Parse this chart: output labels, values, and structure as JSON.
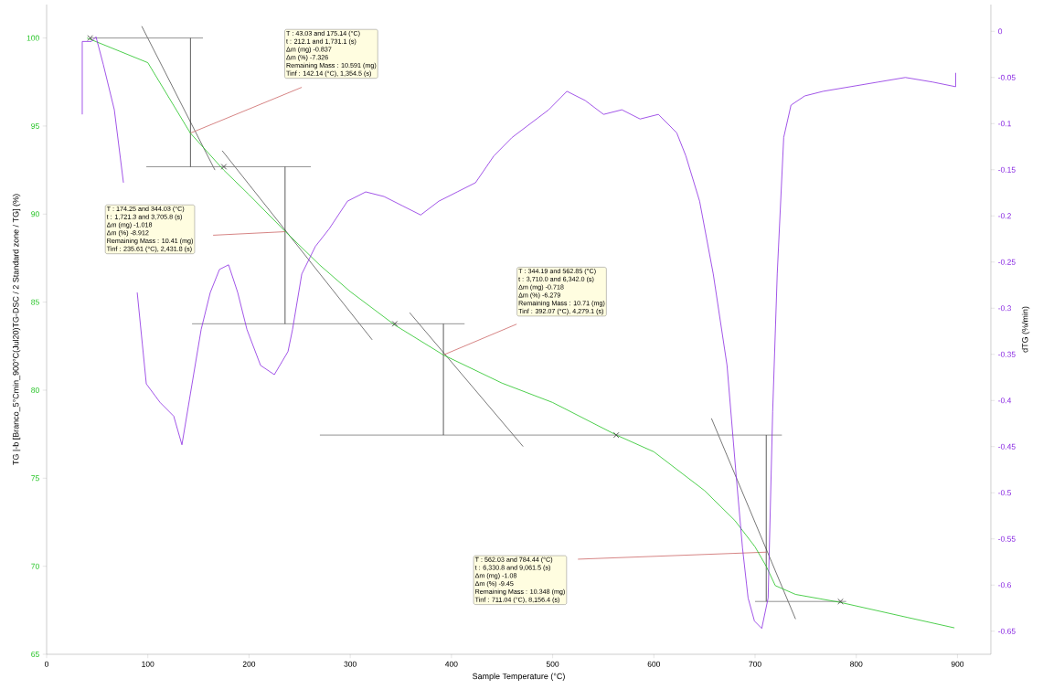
{
  "chart_data": {
    "type": "line",
    "xlabel": "Sample Temperature (°C)",
    "ylabel": "TG |-b [Branco_5°Cmin_900°C(Jul20)TG-DSC / 2 Standard zone / TG] (%)",
    "y2label": "dTG (%/min)",
    "xlim": [
      0,
      933
    ],
    "xticks": [
      0,
      100,
      200,
      300,
      400,
      500,
      600,
      700,
      800,
      900
    ],
    "ylim": [
      65,
      101.9
    ],
    "yticks": [
      65,
      70,
      75,
      80,
      85,
      90,
      95,
      100
    ],
    "y2lim": [
      -0.675,
      0.029
    ],
    "y2ticks": [
      -0.65,
      -0.6,
      -0.55,
      -0.5,
      -0.45,
      -0.4,
      -0.35,
      -0.3,
      -0.25,
      -0.2,
      -0.15,
      -0.1,
      -0.05,
      0
    ],
    "grid": false,
    "series": [
      {
        "color": "#555555",
        "x": [
          94.0,
          166.3
        ],
        "values": [
          100.67,
          92.5
        ]
      },
      {
        "color": "#555555",
        "x": [
          173.5,
          321.7
        ],
        "values": [
          93.6,
          82.86
        ]
      },
      {
        "color": "#555555",
        "x": [
          358.7,
          470.8
        ],
        "values": [
          84.4,
          76.8
        ]
      },
      {
        "color": "#555555",
        "x": [
          656.9,
          740.0
        ],
        "values": [
          78.4,
          67.0
        ]
      },
      {
        "color": "#777777",
        "x": [
          43.0,
          154.5
        ],
        "values": [
          100.0,
          100.0
        ]
      },
      {
        "color": "#777777",
        "x": [
          98.5,
          261.1
        ],
        "values": [
          92.69,
          92.69
        ]
      },
      {
        "color": "#777777",
        "x": [
          143.7,
          413.0
        ],
        "values": [
          83.77,
          83.77
        ]
      },
      {
        "color": "#777777",
        "x": [
          270.0,
          726.5
        ],
        "values": [
          77.45,
          77.45
        ]
      },
      {
        "color": "#777777",
        "x": [
          700.0,
          790.0
        ],
        "values": [
          68.0,
          68.0
        ]
      },
      {
        "color": "#333333",
        "x": [
          142.14,
          142.14
        ],
        "values": [
          100.0,
          92.69
        ]
      },
      {
        "color": "#333333",
        "x": [
          235.61,
          235.61
        ],
        "values": [
          92.69,
          83.77
        ]
      },
      {
        "color": "#333333",
        "x": [
          392.07,
          392.07
        ],
        "values": [
          83.77,
          77.45
        ]
      },
      {
        "color": "#333333",
        "x": [
          711.04,
          711.04
        ],
        "values": [
          77.45,
          68.0
        ]
      },
      {
        "color": "#cc6666",
        "x": [
          142.14,
          252.1
        ],
        "values": [
          94.6,
          97.2
        ]
      },
      {
        "color": "#cc6666",
        "x": [
          164.5,
          235.61
        ],
        "values": [
          88.8,
          89.0
        ]
      },
      {
        "color": "#cc6666",
        "x": [
          392.07,
          464.4
        ],
        "values": [
          82.0,
          83.75
        ]
      },
      {
        "color": "#cc6666",
        "x": [
          525.0,
          711.04
        ],
        "values": [
          70.4,
          70.8
        ]
      },
      {
        "color": "#22c322",
        "x": [
          40,
          100,
          142,
          175,
          200,
          236,
          270,
          300,
          344,
          392,
          450,
          500,
          563,
          600,
          650,
          680,
          700,
          711,
          720,
          740,
          784,
          850,
          897
        ],
        "values": [
          100.0,
          98.6,
          94.6,
          92.5,
          91.1,
          89.0,
          87.1,
          85.6,
          83.7,
          82.0,
          80.4,
          79.3,
          77.45,
          76.5,
          74.3,
          72.6,
          71.1,
          70.0,
          68.9,
          68.4,
          67.95,
          67.1,
          66.5
        ]
      },
      {
        "color": "#8a2be2",
        "axis": "y2",
        "x": [
          35.2,
          35.2,
          44.3,
          48.8,
          56.0,
          66.9,
          75.9,
          80.4,
          89.5,
          98.5,
          112.0,
          125.6,
          133.7,
          143.7,
          152.7,
          161.7,
          170.8,
          179.8,
          188.8,
          197.9,
          211.4,
          225.0,
          238.5,
          243.0,
          252.1,
          265.6,
          279.2,
          297.3,
          315.3,
          333.4,
          351.5,
          369.6,
          387.6,
          405.7,
          423.8,
          441.9,
          459.9,
          478.0,
          496.1,
          514.1,
          532.2,
          550.3,
          568.4,
          586.4,
          604.5,
          622.6,
          631.6,
          645.2,
          658.7,
          672.3,
          681.3,
          687.6,
          693.1,
          699.4,
          706.6,
          712.9,
          717.4,
          721.9,
          728.3,
          735.5,
          749.1,
          767.2,
          794.3,
          821.4,
          848.5,
          875.6,
          898.2,
          898.2
        ],
        "values": [
          -0.09,
          -0.011,
          -0.011,
          -0.006,
          -0.036,
          -0.085,
          -0.164,
          null,
          -0.283,
          -0.382,
          -0.402,
          -0.417,
          -0.448,
          -0.382,
          -0.323,
          -0.283,
          -0.258,
          -0.253,
          -0.283,
          -0.323,
          -0.362,
          -0.372,
          -0.347,
          -0.323,
          -0.263,
          -0.233,
          -0.214,
          -0.184,
          -0.174,
          -0.179,
          -0.189,
          -0.199,
          -0.184,
          -0.174,
          -0.164,
          -0.135,
          -0.115,
          -0.1,
          -0.085,
          -0.065,
          -0.075,
          -0.09,
          -0.085,
          -0.095,
          -0.09,
          -0.11,
          -0.135,
          -0.184,
          -0.263,
          -0.362,
          -0.481,
          -0.56,
          -0.614,
          -0.639,
          -0.647,
          -0.614,
          -0.412,
          -0.263,
          -0.115,
          -0.08,
          -0.07,
          -0.065,
          -0.06,
          -0.055,
          -0.05,
          -0.055,
          -0.06,
          -0.045
        ]
      },
      {
        "type": "scatter",
        "color": "#444444",
        "marker": "cross",
        "x": [
          43.03,
          175.14,
          344.03,
          562.85,
          784.44
        ],
        "values": [
          100.0,
          92.69,
          83.77,
          77.45,
          68.0
        ]
      }
    ],
    "annotations": [
      "T : 43.03 and 175.14 (°C)",
      "t : 212.1 and 1,731.1 (s)",
      "Δm (mg) -0.837",
      "Δm (%) -7.326",
      "Remaining Mass : 10.591 (mg)",
      "Tinf : 142.14 (°C), 1,354.5 (s)",
      "T : 174.25 and 344.03 (°C)",
      "t : 1,721.3 and 3,705.8 (s)",
      "Δm (mg) -1.018",
      "Δm (%) -8.912",
      "Remaining Mass : 10.41 (mg)",
      "Tinf : 235.61 (°C), 2,431.8 (s)",
      "T : 344.19 and 562.85 (°C)",
      "t : 3,710.0 and 6,342.0 (s)",
      "Δm (mg) -0.718",
      "Δm (%) -6.279",
      "Remaining Mass : 10.71 (mg)",
      "Tinf : 392.07 (°C), 4,279.1 (s)",
      "T : 562.03 and 784.44 (°C)",
      "t : 6,330.8 and 9,061.5 (s)",
      "Δm (mg) -1.08",
      "Δm (%) -9.45",
      "Remaining Mass : 10.348 (mg)",
      "Tinf : 711.04 (°C), 8,156.4 (s)"
    ]
  }
}
